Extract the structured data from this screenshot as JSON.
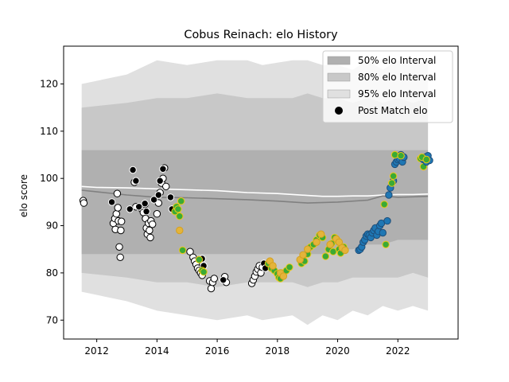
{
  "chart_data": {
    "type": "scatter",
    "title": "Cobus Reinach: elo History",
    "xlabel": "",
    "ylabel": "elo score",
    "xlim": [
      2010.9,
      2024.0
    ],
    "ylim": [
      66,
      128
    ],
    "x_ticks": [
      2012,
      2014,
      2016,
      2018,
      2020,
      2022
    ],
    "x_tick_labels": [
      "2012",
      "2014",
      "2016",
      "2018",
      "2020",
      "2022"
    ],
    "y_ticks": [
      70,
      80,
      90,
      100,
      110,
      120
    ],
    "y_tick_labels": [
      "70",
      "80",
      "90",
      "100",
      "110",
      "120"
    ],
    "grid": false,
    "legend_position": "top-right",
    "legend": [
      {
        "label": "50% elo Interval",
        "kind": "band",
        "color": "#b0b0b0"
      },
      {
        "label": "80% elo Interval",
        "kind": "band",
        "color": "#c8c8c8"
      },
      {
        "label": "95% elo Interval",
        "kind": "band",
        "color": "#e0e0e0"
      },
      {
        "label": "Post Match elo",
        "kind": "marker",
        "color": "#000000"
      }
    ],
    "bands": [
      {
        "name": "95% elo Interval",
        "color": "#e0e0e0",
        "x": [
          2011.5,
          2013.0,
          2014.0,
          2015.0,
          2016.0,
          2017.0,
          2017.5,
          2018.5,
          2019.0,
          2019.5,
          2020.0,
          2020.5,
          2021.0,
          2021.5,
          2022.0,
          2022.5,
          2023.0
        ],
        "lower": [
          76,
          74,
          72,
          71,
          70,
          71,
          70,
          71,
          69,
          71,
          70,
          72,
          71,
          73,
          72,
          73,
          72
        ],
        "upper": [
          120,
          122,
          125,
          124,
          125,
          125,
          124,
          125,
          125,
          124,
          124,
          123,
          125,
          123,
          125,
          124,
          125
        ]
      },
      {
        "name": "80% elo Interval",
        "color": "#c8c8c8",
        "x": [
          2011.5,
          2013.0,
          2014.0,
          2015.0,
          2016.0,
          2017.0,
          2017.5,
          2018.5,
          2019.0,
          2019.5,
          2020.0,
          2020.5,
          2021.0,
          2021.5,
          2022.0,
          2022.5,
          2023.0
        ],
        "lower": [
          80,
          79,
          78,
          78,
          77,
          78,
          78,
          78,
          77,
          78,
          78,
          79,
          79,
          79,
          79,
          80,
          79
        ],
        "upper": [
          115,
          116,
          117,
          117,
          118,
          117,
          117,
          117,
          118,
          117,
          117,
          116,
          117,
          116,
          117,
          116,
          117
        ]
      },
      {
        "name": "50% elo Interval",
        "color": "#b0b0b0",
        "x": [
          2011.5,
          2013.0,
          2014.0,
          2015.0,
          2016.0,
          2017.0,
          2017.5,
          2018.5,
          2019.0,
          2019.5,
          2020.0,
          2020.5,
          2021.0,
          2021.5,
          2022.0,
          2022.5,
          2023.0
        ],
        "lower": [
          84,
          84,
          84,
          84,
          84,
          84,
          84,
          84,
          84,
          84,
          85,
          85,
          86,
          86,
          87,
          87,
          87
        ],
        "upper": [
          106,
          106,
          106,
          106,
          106,
          106,
          106,
          106,
          106,
          106,
          106,
          106,
          106,
          106,
          106,
          106,
          106
        ]
      }
    ],
    "series": [
      {
        "name": "Post Match elo",
        "kind": "line",
        "color": "#ffffff",
        "x": [
          2011.5,
          2012.0,
          2013.0,
          2014.0,
          2015.0,
          2016.0,
          2016.5,
          2017.0,
          2018.0,
          2019.0,
          2019.5,
          2020.0,
          2020.5,
          2021.0,
          2021.5,
          2022.0,
          2022.5,
          2023.0
        ],
        "y": [
          98.3,
          98.1,
          98.0,
          97.8,
          97.6,
          97.4,
          97.2,
          97.0,
          96.8,
          96.4,
          96.2,
          96.2,
          96.3,
          96.3,
          96.5,
          96.6,
          96.6,
          96.7
        ]
      },
      {
        "name": "",
        "kind": "line",
        "color": "#808080",
        "x": [
          2011.5,
          2013.0,
          2014.0,
          2015.0,
          2016.0,
          2017.0,
          2018.0,
          2019.0,
          2020.0,
          2021.0,
          2021.5,
          2022.0,
          2022.5,
          2023.0
        ],
        "y": [
          97.5,
          96.5,
          96.0,
          95.9,
          95.7,
          95.5,
          95.2,
          94.8,
          95.0,
          95.4,
          96.3,
          96.0,
          96.1,
          96.2
        ]
      }
    ],
    "points": [
      {
        "group": "white",
        "fill": "#ffffff",
        "edge": "#000000",
        "x": [
          2011.55,
          2011.57,
          2012.55,
          2012.6,
          2012.62,
          2012.65,
          2012.68,
          2012.7,
          2012.72,
          2012.75,
          2012.78,
          2012.8,
          2012.82,
          2013.25,
          2013.3,
          2013.5,
          2013.55,
          2013.6,
          2013.62,
          2013.65,
          2013.68,
          2013.72,
          2013.75,
          2013.78,
          2013.8,
          2013.85,
          2014.0,
          2014.05,
          2014.1,
          2014.15,
          2014.2,
          2014.25,
          2014.3,
          2015.1,
          2015.2,
          2015.25,
          2015.3,
          2015.35,
          2015.4,
          2015.45,
          2015.5,
          2015.75,
          2015.8,
          2015.85,
          2015.9,
          2016.25,
          2016.3,
          2017.15,
          2017.2,
          2017.25,
          2017.3,
          2017.35,
          2017.4,
          2017.45,
          2017.5
        ],
        "y": [
          95.3,
          94.8,
          90.5,
          91.5,
          89.2,
          92.5,
          96.8,
          93.8,
          91.0,
          85.5,
          83.3,
          89.0,
          90.9,
          99.2,
          94.0,
          93.5,
          92.8,
          94.5,
          91.5,
          89.5,
          88.2,
          90.5,
          89.0,
          87.5,
          91.0,
          90.3,
          92.5,
          94.8,
          97.0,
          99.0,
          100.0,
          102.2,
          98.3,
          84.5,
          83.3,
          82.5,
          81.8,
          81.0,
          80.5,
          80.0,
          79.5,
          78.3,
          76.7,
          78.0,
          78.8,
          79.2,
          78.0,
          77.8,
          78.5,
          79.3,
          80.2,
          80.8,
          81.5,
          80.0,
          81.2
        ]
      },
      {
        "group": "black",
        "fill": "#000000",
        "edge": "#ffffff",
        "x": [
          2012.5,
          2013.1,
          2013.2,
          2013.3,
          2013.4,
          2013.6,
          2013.65,
          2013.9,
          2014.05,
          2014.1,
          2014.2,
          2014.45,
          2014.5,
          2015.5,
          2015.55,
          2016.2,
          2017.55,
          2017.6
        ],
        "y": [
          95.0,
          93.5,
          101.8,
          99.5,
          94.0,
          94.7,
          93.0,
          95.5,
          96.5,
          99.5,
          102.0,
          96.0,
          93.5,
          83.0,
          81.5,
          78.5,
          82.0,
          81.0
        ]
      },
      {
        "group": "green",
        "fill": "#3aaa35",
        "edge": "#f0c814",
        "x": [
          2014.6,
          2014.65,
          2014.7,
          2014.75,
          2014.8,
          2014.85,
          2015.4,
          2015.5,
          2015.55,
          2017.7,
          2017.8,
          2017.9,
          2018.0,
          2018.05,
          2018.1,
          2018.15,
          2018.2,
          2018.3,
          2018.4,
          2018.8,
          2018.85,
          2018.9,
          2019.0,
          2019.1,
          2019.2,
          2019.3,
          2019.4,
          2019.5,
          2019.6,
          2019.7,
          2019.8,
          2019.85,
          2019.9,
          2020.0,
          2020.05,
          2020.1,
          2020.2,
          2021.55,
          2021.6,
          2022.75,
          2022.85
        ],
        "y": [
          93.0,
          94.0,
          93.5,
          92.0,
          95.2,
          84.8,
          82.8,
          80.5,
          80.2,
          82.0,
          81.0,
          80.5,
          79.8,
          79.0,
          78.8,
          80.0,
          79.5,
          80.5,
          81.2,
          82.0,
          83.0,
          82.5,
          84.0,
          85.5,
          86.0,
          87.0,
          88.0,
          87.5,
          83.5,
          85.0,
          86.2,
          84.5,
          87.5,
          86.8,
          85.0,
          84.2,
          85.5,
          94.5,
          86.0,
          104.2,
          102.5
        ]
      },
      {
        "group": "gold",
        "fill": "#e4b43a",
        "edge": "#d4a020",
        "x": [
          2014.75,
          2017.75,
          2017.85,
          2018.1,
          2018.2,
          2018.75,
          2018.85,
          2019.0,
          2019.3,
          2019.45,
          2019.75,
          2019.95,
          2020.05,
          2020.15,
          2020.25
        ],
        "y": [
          89.0,
          82.5,
          81.5,
          80.0,
          79.3,
          82.8,
          83.8,
          85.0,
          86.5,
          88.2,
          86.0,
          87.2,
          86.5,
          85.3,
          84.8
        ]
      },
      {
        "group": "blue",
        "fill": "#1f77b4",
        "edge": "#1f4e79",
        "x": [
          2020.7,
          2020.75,
          2020.8,
          2020.85,
          2020.9,
          2020.95,
          2021.0,
          2021.05,
          2021.1,
          2021.15,
          2021.2,
          2021.25,
          2021.3,
          2021.35,
          2021.4,
          2021.45,
          2021.5,
          2021.65,
          2021.7,
          2021.75,
          2021.85,
          2021.9,
          2021.95,
          2022.0,
          2022.05,
          2022.1,
          2022.15,
          2022.2,
          2022.85,
          2022.9,
          2022.95,
          2023.0,
          2023.05
        ],
        "y": [
          84.8,
          85.0,
          85.5,
          86.5,
          87.0,
          87.8,
          88.2,
          88.0,
          87.5,
          88.5,
          89.0,
          89.5,
          88.0,
          88.8,
          90.0,
          90.5,
          88.5,
          91.0,
          96.5,
          98.0,
          99.5,
          103.0,
          103.5,
          104.0,
          104.2,
          105.0,
          103.5,
          104.5,
          104.0,
          104.5,
          103.5,
          104.8,
          103.8
        ]
      },
      {
        "group": "green2",
        "fill": "#3aaa35",
        "edge": "#f0c814",
        "x": [
          2021.8,
          2021.85,
          2021.9,
          2022.1,
          2022.8,
          2022.95
        ],
        "y": [
          99.0,
          100.5,
          105.0,
          104.8,
          104.5,
          104.0
        ]
      }
    ]
  }
}
